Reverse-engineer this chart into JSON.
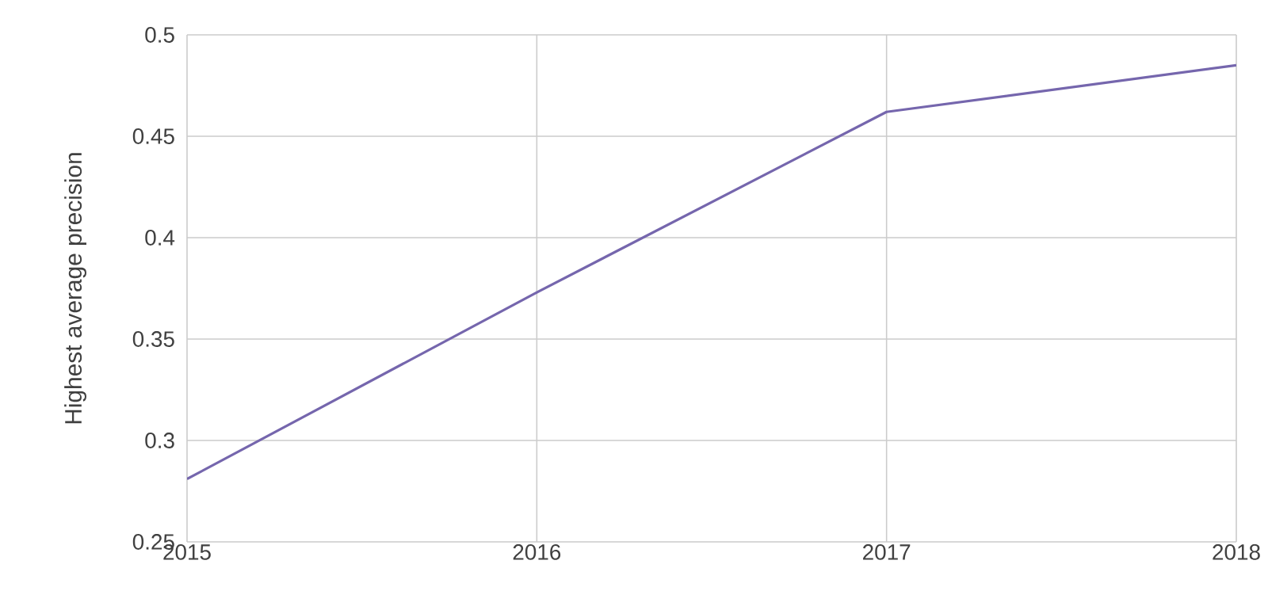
{
  "chart_data": {
    "type": "line",
    "ylabel": "Highest average precision",
    "x": [
      2015,
      2016,
      2017,
      2018
    ],
    "series": [
      {
        "color": "#7566ad",
        "values": [
          0.281,
          0.373,
          0.462,
          0.485
        ]
      }
    ],
    "xlim": [
      2015,
      2018
    ],
    "xticks": [
      2015,
      2016,
      2017,
      2018
    ],
    "ylim": [
      0.25,
      0.5
    ],
    "yticks": [
      0.25,
      0.3,
      0.35,
      0.4,
      0.45,
      0.5
    ],
    "grid": true,
    "marker": "none",
    "line_style": "solid"
  }
}
